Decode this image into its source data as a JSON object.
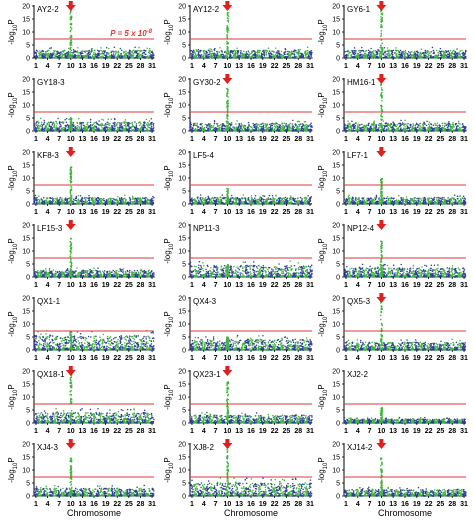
{
  "figure": {
    "xlabel": "Chromosome",
    "ylabel_main": "-log",
    "ylabel_sub": "10",
    "ylabel_tail": "P",
    "threshold_annotation": "P = 5 x 10",
    "threshold_exponent": "-8",
    "threshold_value": 7.3,
    "colors": {
      "odd_chrom": "#2e3d9a",
      "even_chrom": "#3db53a",
      "threshold": "#d93a3a",
      "marker": "#e01f1f"
    }
  },
  "chart_data": {
    "type": "scatter",
    "plot_kind": "manhattan",
    "chromosomes": 31,
    "x_ticks": [
      "1",
      "4",
      "7",
      "10",
      "13",
      "16",
      "19",
      "22",
      "25",
      "28",
      "31"
    ],
    "x_ticks_sparse": [
      "1",
      "4",
      "7",
      "10",
      "13",
      "16",
      "19",
      "22",
      "25",
      "28",
      "31"
    ],
    "ylim": [
      0,
      20
    ],
    "y_ticks": [
      "0",
      "5",
      "10",
      "15",
      "20"
    ],
    "panels": [
      {
        "name": "AY2-2",
        "peak": 20,
        "peak_chrom": 10,
        "marker": true,
        "bg": 3
      },
      {
        "name": "AY12-2",
        "peak": 20,
        "peak_chrom": 10,
        "marker": true,
        "bg": 3
      },
      {
        "name": "GY6-1",
        "peak": 20,
        "peak_chrom": 10,
        "marker": true,
        "bg": 3
      },
      {
        "name": "GY18-3",
        "peak": 5,
        "peak_chrom": 10,
        "marker": false,
        "bg": 3.5
      },
      {
        "name": "GY30-2",
        "peak": 17,
        "peak_chrom": 10,
        "marker": true,
        "bg": 3
      },
      {
        "name": "HM16-1",
        "peak": 20,
        "peak_chrom": 10,
        "marker": true,
        "bg": 3
      },
      {
        "name": "KF8-3",
        "peak": 15,
        "peak_chrom": 10,
        "marker": true,
        "bg": 2.5
      },
      {
        "name": "LF5-4",
        "peak": 6,
        "peak_chrom": 10,
        "marker": false,
        "bg": 2.5
      },
      {
        "name": "LF7-1",
        "peak": 10,
        "peak_chrom": 10,
        "marker": true,
        "bg": 2.5
      },
      {
        "name": "LF15-3",
        "peak": 15,
        "peak_chrom": 10,
        "marker": true,
        "bg": 2.5
      },
      {
        "name": "NP11-3",
        "peak": 5,
        "peak_chrom": 10,
        "marker": false,
        "bg": 4.5
      },
      {
        "name": "NP12-4",
        "peak": 14,
        "peak_chrom": 10,
        "marker": true,
        "bg": 3.5
      },
      {
        "name": "QX1-1",
        "peak": 7,
        "peak_chrom": 10,
        "marker": false,
        "bg": 5.5
      },
      {
        "name": "QX4-3",
        "peak": 5,
        "peak_chrom": 10,
        "marker": false,
        "bg": 4
      },
      {
        "name": "QX5-3",
        "peak": 20,
        "peak_chrom": 10,
        "marker": true,
        "bg": 3
      },
      {
        "name": "QX18-1",
        "peak": 20,
        "peak_chrom": 10,
        "marker": true,
        "bg": 4
      },
      {
        "name": "QX23-1",
        "peak": 16,
        "peak_chrom": 10,
        "marker": true,
        "bg": 3
      },
      {
        "name": "XJ2-2",
        "peak": 6,
        "peak_chrom": 10,
        "marker": false,
        "bg": 1.5
      },
      {
        "name": "XJ4-3",
        "peak": 15,
        "peak_chrom": 10,
        "marker": true,
        "bg": 3
      },
      {
        "name": "XJ8-2",
        "peak": 20,
        "peak_chrom": 10,
        "marker": true,
        "bg": 5
      },
      {
        "name": "XJ14-2",
        "peak": 15,
        "peak_chrom": 10,
        "marker": true,
        "bg": 2.5
      }
    ]
  }
}
